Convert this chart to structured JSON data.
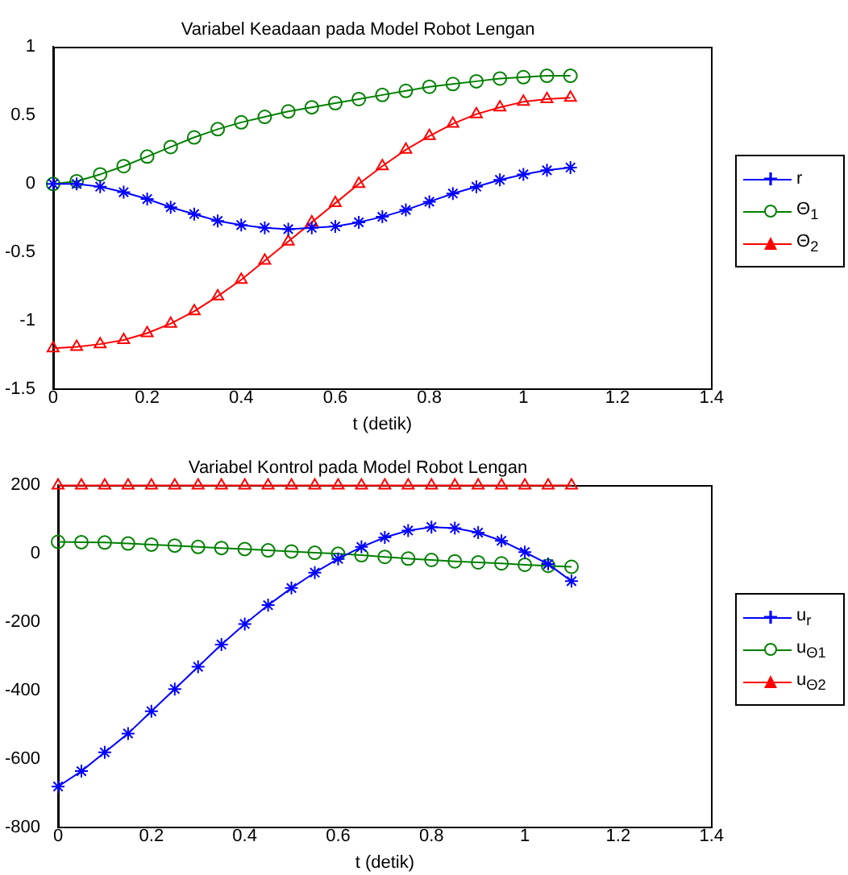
{
  "chart_data": [
    {
      "type": "line",
      "title": "Variabel Keadaan pada Model Robot Lengan",
      "xlabel": "t (detik)",
      "x": [
        0,
        0.05,
        0.1,
        0.15,
        0.2,
        0.25,
        0.3,
        0.35,
        0.4,
        0.45,
        0.5,
        0.55,
        0.6,
        0.65,
        0.7,
        0.75,
        0.8,
        0.85,
        0.9,
        0.95,
        1.0,
        1.05,
        1.1
      ],
      "series": [
        {
          "name": "r",
          "color": "#0000ff",
          "marker": "cross",
          "values": [
            0,
            0,
            -0.02,
            -0.06,
            -0.11,
            -0.17,
            -0.22,
            -0.27,
            -0.3,
            -0.32,
            -0.33,
            -0.32,
            -0.31,
            -0.28,
            -0.24,
            -0.19,
            -0.13,
            -0.07,
            -0.02,
            0.03,
            0.07,
            0.1,
            0.12
          ]
        },
        {
          "name": "Θ$_{1}$",
          "color": "#008000",
          "marker": "circle",
          "values": [
            0,
            0.02,
            0.07,
            0.13,
            0.2,
            0.27,
            0.34,
            0.4,
            0.45,
            0.49,
            0.53,
            0.56,
            0.59,
            0.62,
            0.65,
            0.68,
            0.71,
            0.73,
            0.75,
            0.77,
            0.78,
            0.79,
            0.79
          ]
        },
        {
          "name": "Θ$_{2}$",
          "color": "#ff0000",
          "marker": "triangle",
          "values": [
            -1.2,
            -1.19,
            -1.17,
            -1.14,
            -1.09,
            -1.02,
            -0.93,
            -0.82,
            -0.7,
            -0.56,
            -0.42,
            -0.28,
            -0.14,
            0,
            0.13,
            0.25,
            0.35,
            0.44,
            0.51,
            0.56,
            0.6,
            0.62,
            0.63
          ]
        }
      ],
      "xlim": [
        0,
        1.4
      ],
      "xticks": [
        0,
        0.2,
        0.4,
        0.6,
        0.8,
        1,
        1.2,
        1.4
      ],
      "ylim": [
        -1.5,
        1
      ],
      "yticks": [
        -1.5,
        -1,
        -0.5,
        0,
        0.5,
        1
      ],
      "grid": false,
      "legend": "right"
    },
    {
      "type": "line",
      "title": "Variabel Kontrol pada Model Robot Lengan",
      "xlabel": "t (detik)",
      "x": [
        0,
        0.05,
        0.1,
        0.15,
        0.2,
        0.25,
        0.3,
        0.35,
        0.4,
        0.45,
        0.5,
        0.55,
        0.6,
        0.65,
        0.7,
        0.75,
        0.8,
        0.85,
        0.9,
        0.95,
        1.0,
        1.05,
        1.1
      ],
      "series": [
        {
          "name": "u$_{r}$",
          "color": "#0000ff",
          "marker": "cross",
          "values": [
            -680,
            -635,
            -580,
            -525,
            -460,
            -395,
            -330,
            -265,
            -205,
            -150,
            -100,
            -55,
            -15,
            20,
            48,
            68,
            78,
            75,
            62,
            38,
            5,
            -30,
            -80
          ]
        },
        {
          "name": "u$_{Θ1}$",
          "color": "#008000",
          "marker": "circle",
          "values": [
            35,
            34,
            33,
            30,
            27,
            24,
            20,
            17,
            14,
            10,
            7,
            3,
            0,
            -4,
            -9,
            -14,
            -18,
            -22,
            -25,
            -28,
            -32,
            -35,
            -38
          ]
        },
        {
          "name": "u$_{Θ2}$",
          "color": "#ff0000",
          "marker": "triangle",
          "values": [
            200,
            200,
            200,
            200,
            200,
            200,
            200,
            200,
            200,
            200,
            200,
            200,
            200,
            200,
            200,
            200,
            200,
            200,
            200,
            200,
            200,
            200,
            200
          ]
        }
      ],
      "xlim": [
        0,
        1.4
      ],
      "xticks": [
        0,
        0.2,
        0.4,
        0.6,
        0.8,
        1,
        1.2,
        1.4
      ],
      "ylim": [
        -800,
        200
      ],
      "yticks": [
        -800,
        -600,
        -400,
        -200,
        0,
        200
      ],
      "grid": false,
      "legend": "right"
    }
  ]
}
